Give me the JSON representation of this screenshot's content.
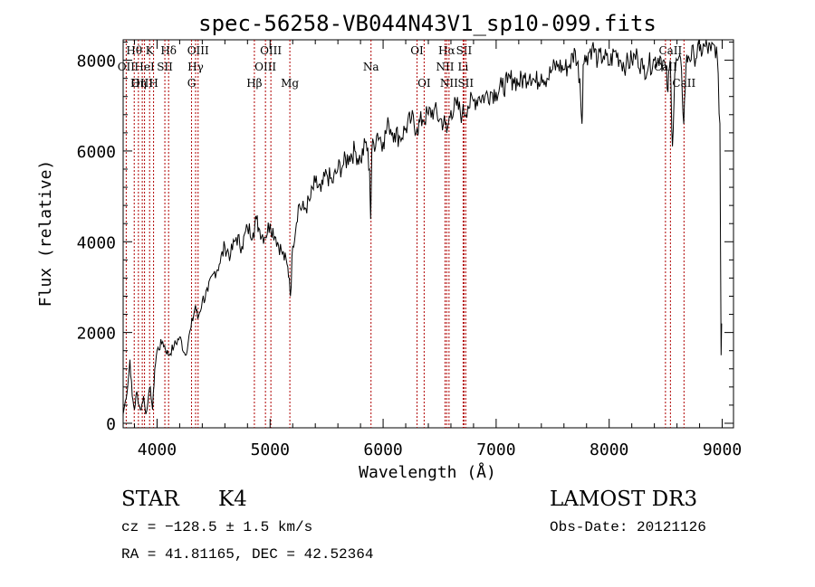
{
  "chart_data": {
    "type": "line",
    "title": "spec-56258-VB044N43V1_sp10-099.fits",
    "xlabel": "Wavelength (Å)",
    "ylabel": "Flux (relative)",
    "xlim": [
      3700,
      9100
    ],
    "ylim": [
      -100,
      8450
    ],
    "xticks": [
      4000,
      5000,
      6000,
      7000,
      8000,
      9000
    ],
    "yticks": [
      0,
      2000,
      4000,
      6000,
      8000
    ],
    "series": [
      {
        "name": "flux",
        "x": [
          3700,
          3720,
          3740,
          3760,
          3780,
          3800,
          3820,
          3840,
          3860,
          3880,
          3900,
          3920,
          3940,
          3960,
          3980,
          4000,
          4050,
          4100,
          4150,
          4200,
          4250,
          4300,
          4340,
          4360,
          4400,
          4450,
          4500,
          4550,
          4600,
          4650,
          4700,
          4750,
          4800,
          4850,
          4880,
          4900,
          4950,
          5000,
          5050,
          5100,
          5150,
          5170,
          5180,
          5200,
          5250,
          5300,
          5350,
          5400,
          5450,
          5500,
          5550,
          5600,
          5650,
          5700,
          5750,
          5800,
          5850,
          5880,
          5890,
          5900,
          5950,
          6000,
          6050,
          6100,
          6150,
          6200,
          6250,
          6300,
          6350,
          6400,
          6450,
          6500,
          6550,
          6563,
          6600,
          6650,
          6700,
          6750,
          6800,
          6850,
          6900,
          6950,
          7000,
          7050,
          7100,
          7150,
          7200,
          7250,
          7300,
          7350,
          7400,
          7450,
          7500,
          7550,
          7600,
          7650,
          7700,
          7740,
          7760,
          7770,
          7800,
          7850,
          7900,
          7950,
          8000,
          8050,
          8100,
          8150,
          8200,
          8250,
          8300,
          8350,
          8400,
          8450,
          8500,
          8520,
          8540,
          8560,
          8580,
          8600,
          8640,
          8660,
          8680,
          8700,
          8750,
          8800,
          8850,
          8900,
          8950,
          8980,
          8990,
          8995
        ],
        "values": [
          200,
          500,
          800,
          1400,
          600,
          300,
          700,
          400,
          300,
          600,
          200,
          500,
          800,
          300,
          1200,
          1600,
          1800,
          1500,
          1700,
          1900,
          1500,
          2100,
          2600,
          2300,
          2700,
          2900,
          3300,
          3500,
          3900,
          3700,
          4100,
          3900,
          4300,
          4200,
          4500,
          4300,
          4100,
          4400,
          4100,
          3800,
          3500,
          3200,
          2800,
          3900,
          4800,
          4700,
          4900,
          5300,
          5100,
          5500,
          5300,
          5600,
          5700,
          5900,
          6000,
          5800,
          6200,
          5600,
          4500,
          6000,
          6400,
          6200,
          6600,
          6400,
          6300,
          6500,
          6700,
          6500,
          6700,
          6800,
          6900,
          6700,
          6600,
          6400,
          6900,
          7000,
          6800,
          7000,
          7100,
          7200,
          7200,
          7300,
          7300,
          7400,
          7500,
          7600,
          7500,
          7600,
          7700,
          7500,
          7700,
          7600,
          7800,
          7900,
          7800,
          7900,
          8200,
          7600,
          6600,
          7900,
          8100,
          8300,
          8000,
          8100,
          7900,
          8200,
          8000,
          7900,
          8000,
          8100,
          7800,
          7900,
          8000,
          8100,
          7800,
          7300,
          8000,
          6100,
          7700,
          8000,
          7800,
          6600,
          7900,
          8100,
          8100,
          8200,
          8300,
          8200,
          8300,
          6600,
          1500,
          2200
        ]
      }
    ],
    "line_marks": [
      {
        "label": "Hθ",
        "wavelength": 3798,
        "row": 0
      },
      {
        "label": "OII",
        "wavelength": 3727,
        "row": 1
      },
      {
        "label": "OIII",
        "wavelength": 3869,
        "row": 2
      },
      {
        "label": "K",
        "wavelength": 3934,
        "row": 0
      },
      {
        "label": "HeI",
        "wavelength": 3889,
        "row": 1
      },
      {
        "label": "Hη",
        "wavelength": 3835,
        "row": 2
      },
      {
        "label": "SII",
        "wavelength": 4069,
        "row": 1
      },
      {
        "label": "H",
        "wavelength": 3969,
        "row": 2
      },
      {
        "label": "Hδ",
        "wavelength": 4102,
        "row": 0
      },
      {
        "label": "OIII",
        "wavelength": 4363,
        "row": 0
      },
      {
        "label": "Hγ",
        "wavelength": 4341,
        "row": 1
      },
      {
        "label": "G",
        "wavelength": 4305,
        "row": 2
      },
      {
        "label": "OIII",
        "wavelength": 5007,
        "row": 0
      },
      {
        "label": "OIII",
        "wavelength": 4959,
        "row": 1
      },
      {
        "label": "Hβ",
        "wavelength": 4861,
        "row": 2
      },
      {
        "label": "Mg",
        "wavelength": 5175,
        "row": 2
      },
      {
        "label": "Na",
        "wavelength": 5893,
        "row": 1
      },
      {
        "label": "OI",
        "wavelength": 6300,
        "row": 0
      },
      {
        "label": "OI",
        "wavelength": 6363,
        "row": 2
      },
      {
        "label": "Hα",
        "wavelength": 6563,
        "row": 0
      },
      {
        "label": "SII",
        "wavelength": 6716,
        "row": 0
      },
      {
        "label": "NII",
        "wavelength": 6548,
        "row": 1
      },
      {
        "label": "Li",
        "wavelength": 6708,
        "row": 1
      },
      {
        "label": "NII",
        "wavelength": 6583,
        "row": 2
      },
      {
        "label": "SII",
        "wavelength": 6731,
        "row": 2
      },
      {
        "label": "CaII",
        "wavelength": 8542,
        "row": 0
      },
      {
        "label": "CaII",
        "wavelength": 8498,
        "row": 1
      },
      {
        "label": "CaII",
        "wavelength": 8662,
        "row": 2
      }
    ]
  },
  "info": {
    "class": "STAR",
    "subclass": "K4",
    "survey": "LAMOST DR3",
    "redshift": "cz = −128.5 ± 1.5 km/s",
    "obs_date": "Obs-Date: 20121126",
    "coords": "RA =  41.81165, DEC =  42.52364"
  },
  "colors": {
    "line_marker": "#b00000",
    "spectrum": "#000000"
  }
}
